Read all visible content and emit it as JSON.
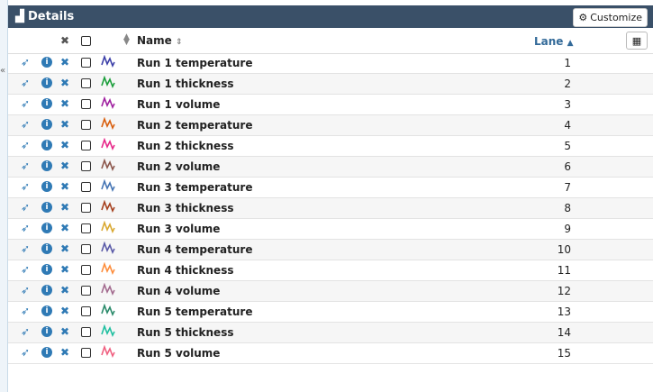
{
  "header": {
    "title": "Details",
    "customize_label": "Customize"
  },
  "columns": {
    "name": "Name",
    "lane": "Lane"
  },
  "rows": [
    {
      "name": "Run 1 temperature",
      "lane": "1",
      "color": "#3b3fa8"
    },
    {
      "name": "Run 1 thickness",
      "lane": "2",
      "color": "#1a9e3a"
    },
    {
      "name": "Run 1 volume",
      "lane": "3",
      "color": "#a020a0"
    },
    {
      "name": "Run 2 temperature",
      "lane": "4",
      "color": "#d95f0e"
    },
    {
      "name": "Run 2 thickness",
      "lane": "5",
      "color": "#e7298a"
    },
    {
      "name": "Run 2 volume",
      "lane": "6",
      "color": "#8c564b"
    },
    {
      "name": "Run 3 temperature",
      "lane": "7",
      "color": "#4575b4"
    },
    {
      "name": "Run 3 thickness",
      "lane": "8",
      "color": "#a6401e"
    },
    {
      "name": "Run 3 volume",
      "lane": "9",
      "color": "#d9a830"
    },
    {
      "name": "Run 4 temperature",
      "lane": "10",
      "color": "#5a5aa8"
    },
    {
      "name": "Run 4 thickness",
      "lane": "11",
      "color": "#fd8d3c"
    },
    {
      "name": "Run 4 volume",
      "lane": "12",
      "color": "#a36b8f"
    },
    {
      "name": "Run 5 temperature",
      "lane": "13",
      "color": "#2a8a6a"
    },
    {
      "name": "Run 5 thickness",
      "lane": "14",
      "color": "#1fbfa0"
    },
    {
      "name": "Run 5 volume",
      "lane": "15",
      "color": "#f06080"
    }
  ]
}
